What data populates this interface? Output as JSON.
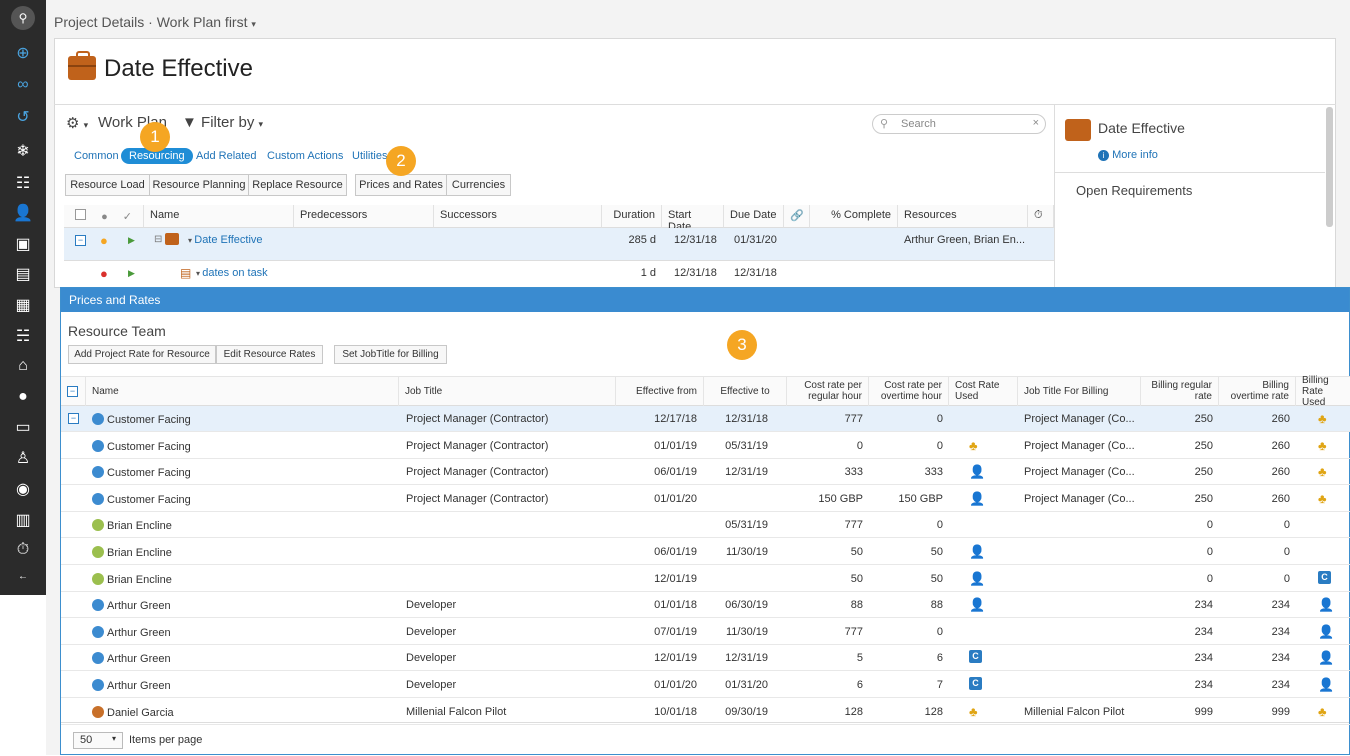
{
  "breadcrumb": {
    "project": "Project Details",
    "sep": "·",
    "plan": "Work Plan first"
  },
  "page": {
    "title": "Date Effective"
  },
  "toolbar": {
    "workplan": "Work Plan",
    "filter": "Filter by",
    "search_placeholder": "Search"
  },
  "tabs": [
    "Common",
    "Resourcing",
    "Add Related",
    "Custom Actions",
    "Utilities"
  ],
  "buttons": [
    "Resource Load",
    "Resource Planning",
    "Replace Resource",
    "Prices and Rates",
    "Currencies"
  ],
  "badges": [
    "1",
    "2",
    "3"
  ],
  "grid": {
    "headers": [
      "Name",
      "Predecessors",
      "Successors",
      "Duration",
      "Start Date",
      "Due Date",
      "% Complete",
      "Resources"
    ],
    "rows": [
      {
        "name": "Date Effective",
        "duration": "285 d",
        "start": "12/31/18",
        "due": "01/31/20",
        "resources": "Arthur Green, Brian En..."
      },
      {
        "name": "dates on task",
        "duration": "1 d",
        "start": "12/31/18",
        "due": "12/31/18",
        "resources": ""
      }
    ]
  },
  "right_panel": {
    "title": "Date Effective",
    "more_info": "More info",
    "section": "Open Requirements"
  },
  "modal": {
    "title": "Prices and Rates",
    "subtitle": "Resource Team",
    "buttons": [
      "Add Project Rate for Resource",
      "Edit Resource Rates",
      "Set JobTitle for Billing"
    ],
    "headers": [
      "Name",
      "Job Title",
      "Effective from",
      "Effective to",
      "Cost rate per regular hour",
      "Cost rate per overtime hour",
      "Cost Rate Used",
      "Job Title For Billing",
      "Billing regular rate",
      "Billing overtime rate",
      "Billing Rate Used"
    ],
    "rows": [
      {
        "name": "Customer Facing",
        "av": "blue",
        "job": "Project Manager (Contractor)",
        "from": "12/17/18",
        "to": "12/31/18",
        "creg": "777",
        "cot": "0",
        "cused": "",
        "jbill": "Project Manager (Co...",
        "breg": "250",
        "bot": "260",
        "bused": "hier"
      },
      {
        "name": "Customer Facing",
        "av": "blue",
        "job": "Project Manager (Contractor)",
        "from": "01/01/19",
        "to": "05/31/19",
        "creg": "0",
        "cot": "0",
        "cused": "hier",
        "jbill": "Project Manager (Co...",
        "breg": "250",
        "bot": "260",
        "bused": "hier"
      },
      {
        "name": "Customer Facing",
        "av": "blue",
        "job": "Project Manager (Contractor)",
        "from": "06/01/19",
        "to": "12/31/19",
        "creg": "333",
        "cot": "333",
        "cused": "person",
        "jbill": "Project Manager (Co...",
        "breg": "250",
        "bot": "260",
        "bused": "hier"
      },
      {
        "name": "Customer Facing",
        "av": "blue",
        "job": "Project Manager (Contractor)",
        "from": "01/01/20",
        "to": "",
        "creg": "150 GBP",
        "cot": "150 GBP",
        "cused": "person",
        "jbill": "Project Manager (Co...",
        "breg": "250",
        "bot": "260",
        "bused": "hier"
      },
      {
        "name": "Brian Encline",
        "av": "green",
        "job": "",
        "from": "",
        "to": "05/31/19",
        "creg": "777",
        "cot": "0",
        "cused": "",
        "jbill": "",
        "breg": "0",
        "bot": "0",
        "bused": ""
      },
      {
        "name": "Brian Encline",
        "av": "green",
        "job": "",
        "from": "06/01/19",
        "to": "11/30/19",
        "creg": "50",
        "cot": "50",
        "cused": "person",
        "jbill": "",
        "breg": "0",
        "bot": "0",
        "bused": ""
      },
      {
        "name": "Brian Encline",
        "av": "green",
        "job": "",
        "from": "12/01/19",
        "to": "",
        "creg": "50",
        "cot": "50",
        "cused": "person",
        "jbill": "",
        "breg": "0",
        "bot": "0",
        "bused": "c"
      },
      {
        "name": "Arthur Green",
        "av": "blue",
        "job": "Developer",
        "from": "01/01/18",
        "to": "06/30/19",
        "creg": "88",
        "cot": "88",
        "cused": "person",
        "jbill": "",
        "breg": "234",
        "bot": "234",
        "bused": "person"
      },
      {
        "name": "Arthur Green",
        "av": "blue",
        "job": "Developer",
        "from": "07/01/19",
        "to": "11/30/19",
        "creg": "777",
        "cot": "0",
        "cused": "",
        "jbill": "",
        "breg": "234",
        "bot": "234",
        "bused": "person"
      },
      {
        "name": "Arthur Green",
        "av": "blue",
        "job": "Developer",
        "from": "12/01/19",
        "to": "12/31/19",
        "creg": "5",
        "cot": "6",
        "cused": "c",
        "jbill": "",
        "breg": "234",
        "bot": "234",
        "bused": "person"
      },
      {
        "name": "Arthur Green",
        "av": "blue",
        "job": "Developer",
        "from": "01/01/20",
        "to": "01/31/20",
        "creg": "6",
        "cot": "7",
        "cused": "c",
        "jbill": "",
        "breg": "234",
        "bot": "234",
        "bused": "person"
      },
      {
        "name": "Daniel Garcia",
        "av": "orange",
        "job": "Millenial Falcon Pilot",
        "from": "10/01/18",
        "to": "09/30/19",
        "creg": "128",
        "cot": "128",
        "cused": "hier",
        "jbill": "Millenial Falcon Pilot",
        "breg": "999",
        "bot": "999",
        "bused": "hier"
      }
    ],
    "pager": {
      "size": "50",
      "label": "Items per page"
    }
  },
  "colors": {
    "accent": "#1f8dd6",
    "header": "#3a8bd0",
    "badge": "#f5a623",
    "bag": "#c0621b"
  }
}
